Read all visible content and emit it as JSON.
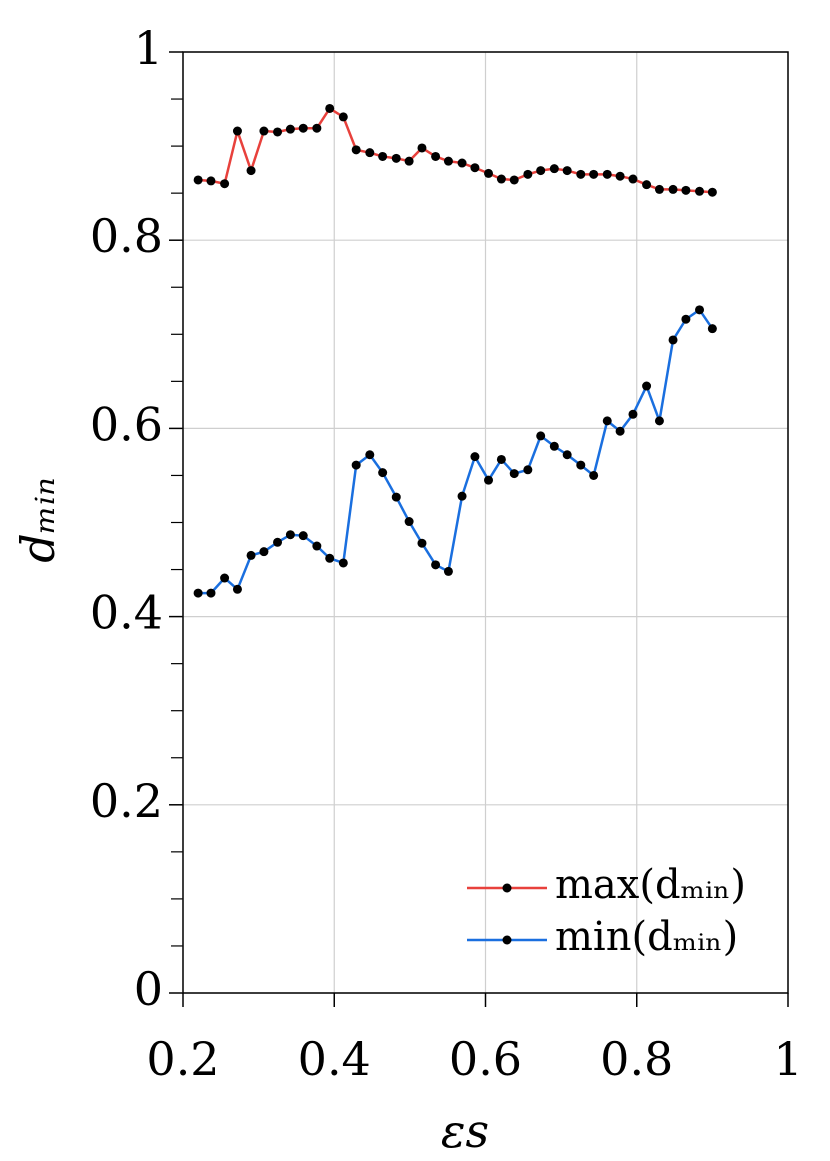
{
  "chart_data": {
    "type": "line",
    "xlabel": "εs",
    "ylabel": "dₘᵢₙ",
    "x": [
      0.22,
      0.237,
      0.255,
      0.272,
      0.29,
      0.307,
      0.325,
      0.342,
      0.359,
      0.377,
      0.394,
      0.412,
      0.429,
      0.447,
      0.464,
      0.482,
      0.499,
      0.516,
      0.534,
      0.551,
      0.569,
      0.586,
      0.604,
      0.621,
      0.638,
      0.656,
      0.673,
      0.691,
      0.708,
      0.726,
      0.743,
      0.761,
      0.778,
      0.795,
      0.813,
      0.83,
      0.848,
      0.865,
      0.883,
      0.9
    ],
    "series": [
      {
        "name": "max(dₘᵢₙ)",
        "color": "#e8413c",
        "values": [
          0.864,
          0.863,
          0.86,
          0.916,
          0.874,
          0.916,
          0.915,
          0.918,
          0.919,
          0.919,
          0.94,
          0.931,
          0.896,
          0.893,
          0.889,
          0.887,
          0.884,
          0.898,
          0.889,
          0.884,
          0.882,
          0.877,
          0.871,
          0.865,
          0.864,
          0.87,
          0.874,
          0.876,
          0.874,
          0.87,
          0.87,
          0.87,
          0.868,
          0.865,
          0.859,
          0.854,
          0.854,
          0.853,
          0.852,
          0.851
        ]
      },
      {
        "name": "min(dₘᵢₙ)",
        "color": "#1a6fdf",
        "values": [
          0.425,
          0.425,
          0.441,
          0.429,
          0.465,
          0.469,
          0.479,
          0.487,
          0.486,
          0.475,
          0.462,
          0.457,
          0.561,
          0.572,
          0.553,
          0.527,
          0.501,
          0.478,
          0.455,
          0.448,
          0.528,
          0.57,
          0.545,
          0.567,
          0.552,
          0.556,
          0.592,
          0.581,
          0.572,
          0.561,
          0.55,
          0.608,
          0.597,
          0.615,
          0.645,
          0.608,
          0.694,
          0.716,
          0.726,
          0.706
        ]
      }
    ],
    "marker_color": "#000000",
    "xlim": [
      0.2,
      1
    ],
    "xticks": [
      0.2,
      0.4,
      0.6,
      0.8,
      1
    ],
    "ylim": [
      0,
      1
    ],
    "yticks": [
      0,
      0.2,
      0.4,
      0.6,
      0.8,
      1
    ],
    "yminorticks": [
      0.05,
      0.1,
      0.15,
      0.25,
      0.3,
      0.35,
      0.45,
      0.5,
      0.55,
      0.65,
      0.7,
      0.75,
      0.85,
      0.9,
      0.95
    ],
    "grid": true,
    "legend": "lower right"
  }
}
